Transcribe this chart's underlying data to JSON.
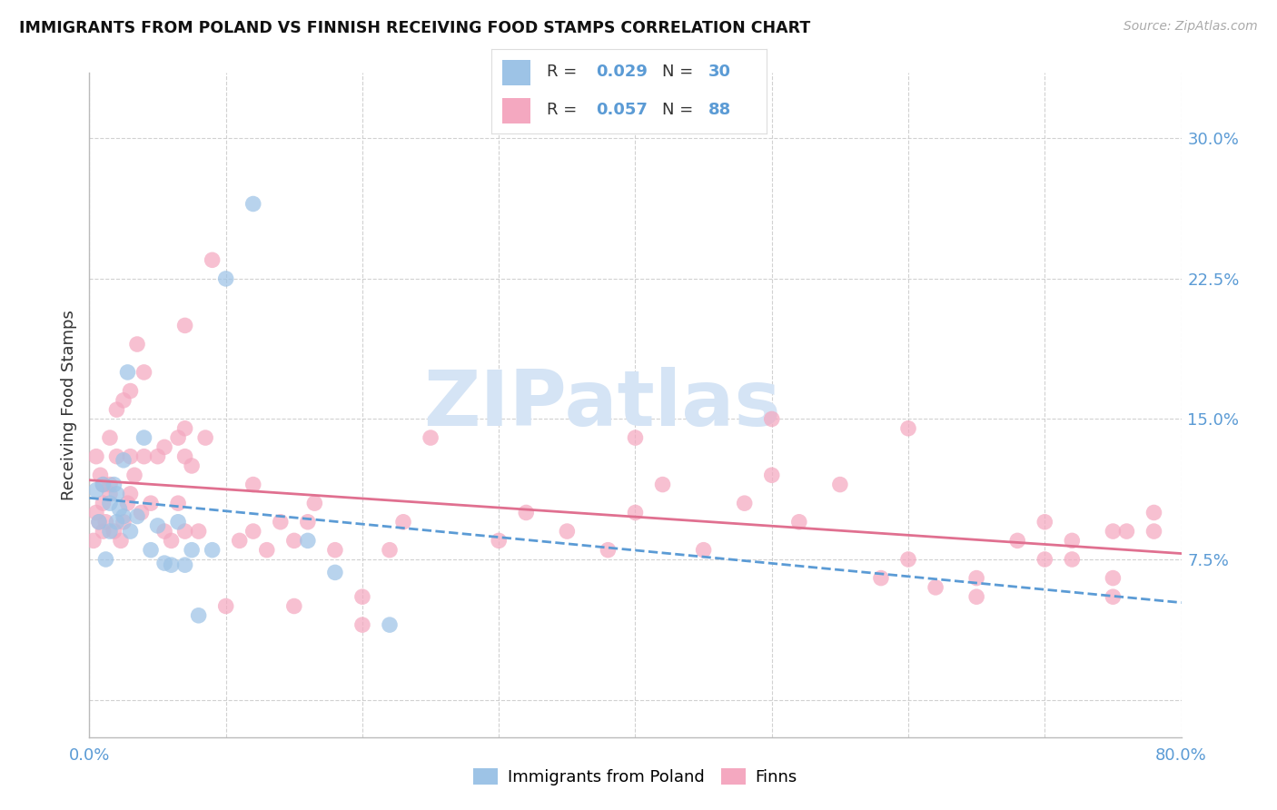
{
  "title": "IMMIGRANTS FROM POLAND VS FINNISH RECEIVING FOOD STAMPS CORRELATION CHART",
  "source": "Source: ZipAtlas.com",
  "ylabel": "Receiving Food Stamps",
  "xlim": [
    0.0,
    0.8
  ],
  "ylim": [
    -0.02,
    0.335
  ],
  "yticks": [
    0.0,
    0.075,
    0.15,
    0.225,
    0.3
  ],
  "ytick_labels": [
    "",
    "7.5%",
    "15.0%",
    "22.5%",
    "30.0%"
  ],
  "xticks": [
    0.0,
    0.1,
    0.2,
    0.3,
    0.4,
    0.5,
    0.6,
    0.7,
    0.8
  ],
  "xtick_labels": [
    "0.0%",
    "",
    "",
    "",
    "",
    "",
    "",
    "",
    "80.0%"
  ],
  "background_color": "#ffffff",
  "grid_color": "#cccccc",
  "tick_color": "#5b9bd5",
  "poland_color": "#9dc3e6",
  "finland_color": "#f4a8c0",
  "poland_line_color": "#5b9bd5",
  "finland_line_color": "#e07090",
  "watermark": "ZIPatlas",
  "watermark_color": "#d5e4f5",
  "poland_R": "0.029",
  "poland_N": "30",
  "finland_R": "0.057",
  "finland_N": "88",
  "legend_text_color": "#5b9bd5",
  "poland_x": [
    0.005,
    0.007,
    0.01,
    0.012,
    0.015,
    0.015,
    0.018,
    0.02,
    0.02,
    0.022,
    0.025,
    0.025,
    0.028,
    0.03,
    0.035,
    0.04,
    0.045,
    0.05,
    0.055,
    0.06,
    0.065,
    0.07,
    0.075,
    0.08,
    0.09,
    0.1,
    0.12,
    0.16,
    0.18,
    0.22
  ],
  "poland_y": [
    0.112,
    0.095,
    0.115,
    0.075,
    0.105,
    0.09,
    0.115,
    0.095,
    0.11,
    0.102,
    0.098,
    0.128,
    0.175,
    0.09,
    0.098,
    0.14,
    0.08,
    0.093,
    0.073,
    0.072,
    0.095,
    0.072,
    0.08,
    0.045,
    0.08,
    0.225,
    0.265,
    0.085,
    0.068,
    0.04
  ],
  "finland_x": [
    0.003,
    0.005,
    0.005,
    0.007,
    0.008,
    0.01,
    0.01,
    0.01,
    0.012,
    0.015,
    0.015,
    0.015,
    0.018,
    0.02,
    0.02,
    0.023,
    0.025,
    0.025,
    0.028,
    0.03,
    0.03,
    0.03,
    0.033,
    0.035,
    0.038,
    0.04,
    0.04,
    0.045,
    0.05,
    0.055,
    0.055,
    0.06,
    0.065,
    0.065,
    0.07,
    0.07,
    0.07,
    0.07,
    0.075,
    0.08,
    0.085,
    0.09,
    0.1,
    0.11,
    0.12,
    0.12,
    0.13,
    0.14,
    0.15,
    0.15,
    0.16,
    0.165,
    0.18,
    0.2,
    0.2,
    0.22,
    0.23,
    0.25,
    0.3,
    0.32,
    0.35,
    0.38,
    0.4,
    0.4,
    0.42,
    0.45,
    0.48,
    0.5,
    0.52,
    0.55,
    0.58,
    0.6,
    0.62,
    0.65,
    0.68,
    0.7,
    0.72,
    0.75,
    0.75,
    0.78,
    0.5,
    0.6,
    0.65,
    0.7,
    0.72,
    0.75,
    0.76,
    0.78
  ],
  "finland_y": [
    0.085,
    0.1,
    0.13,
    0.095,
    0.12,
    0.09,
    0.115,
    0.105,
    0.095,
    0.11,
    0.115,
    0.14,
    0.09,
    0.13,
    0.155,
    0.085,
    0.16,
    0.095,
    0.105,
    0.11,
    0.13,
    0.165,
    0.12,
    0.19,
    0.1,
    0.13,
    0.175,
    0.105,
    0.13,
    0.09,
    0.135,
    0.085,
    0.105,
    0.14,
    0.09,
    0.13,
    0.145,
    0.2,
    0.125,
    0.09,
    0.14,
    0.235,
    0.05,
    0.085,
    0.09,
    0.115,
    0.08,
    0.095,
    0.05,
    0.085,
    0.095,
    0.105,
    0.08,
    0.04,
    0.055,
    0.08,
    0.095,
    0.14,
    0.085,
    0.1,
    0.09,
    0.08,
    0.1,
    0.14,
    0.115,
    0.08,
    0.105,
    0.12,
    0.095,
    0.115,
    0.065,
    0.075,
    0.06,
    0.055,
    0.085,
    0.095,
    0.075,
    0.09,
    0.065,
    0.09,
    0.15,
    0.145,
    0.065,
    0.075,
    0.085,
    0.055,
    0.09,
    0.1
  ]
}
